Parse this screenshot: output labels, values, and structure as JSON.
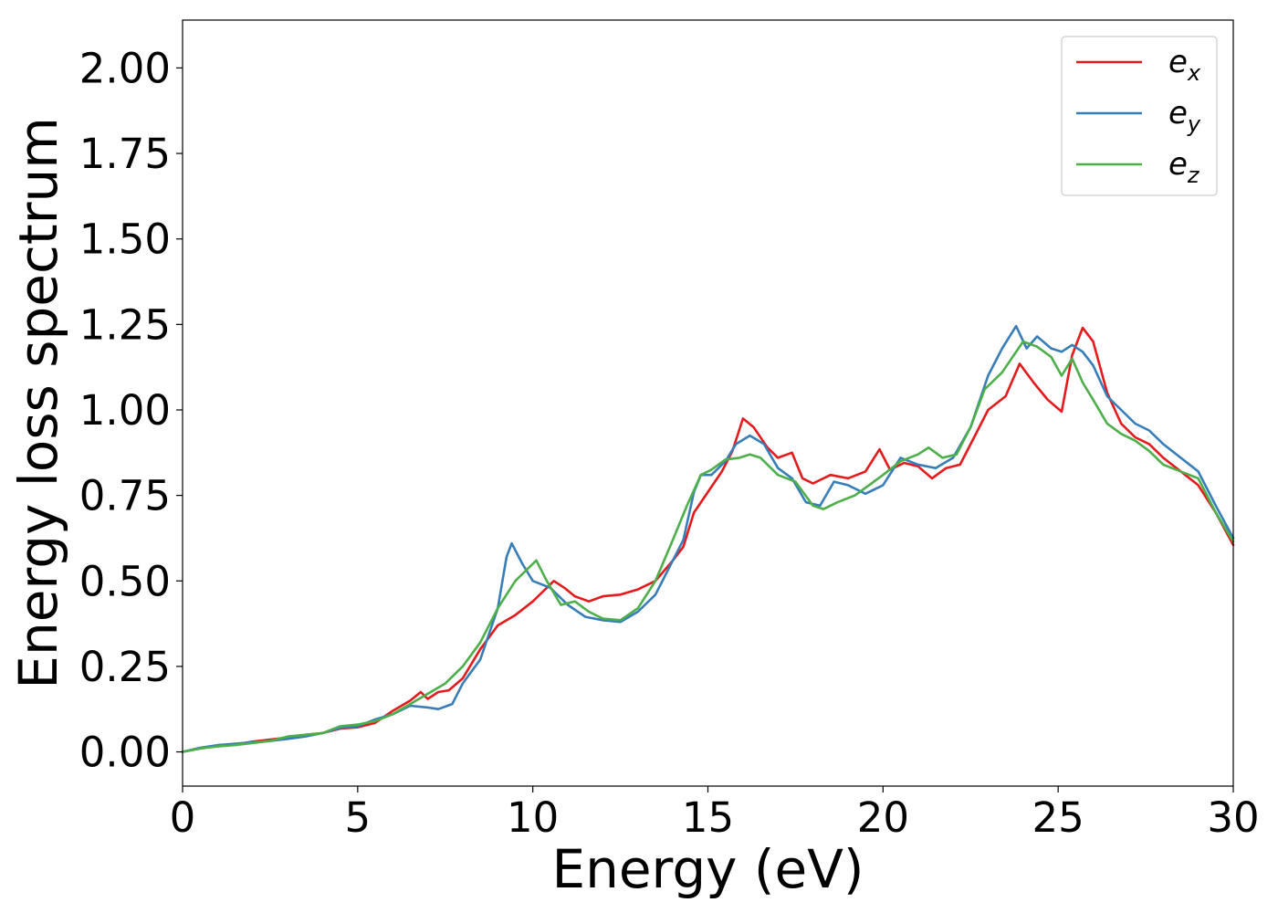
{
  "chart_data": {
    "type": "line",
    "title": "",
    "xlabel": "Energy (eV)",
    "ylabel": "Energy loss spectrum",
    "xlim": [
      0,
      30
    ],
    "ylim": [
      -0.1,
      2.14
    ],
    "x_ticks": [
      0,
      5,
      10,
      15,
      20,
      25,
      30
    ],
    "x_tick_labels": [
      "0",
      "5",
      "10",
      "15",
      "20",
      "25",
      "30"
    ],
    "y_ticks": [
      0.0,
      0.25,
      0.5,
      0.75,
      1.0,
      1.25,
      1.5,
      1.75,
      2.0
    ],
    "y_tick_labels": [
      "0.00",
      "0.25",
      "0.50",
      "0.75",
      "1.00",
      "1.25",
      "1.50",
      "1.75",
      "2.00"
    ],
    "grid": false,
    "legend_position": "top-right",
    "series": [
      {
        "name": "e_x",
        "label_base": "e",
        "label_sub": "x",
        "color": "#e41a1c",
        "points": [
          [
            0,
            0.0
          ],
          [
            0.5,
            0.01
          ],
          [
            1,
            0.018
          ],
          [
            1.5,
            0.022
          ],
          [
            2,
            0.03
          ],
          [
            2.5,
            0.036
          ],
          [
            3,
            0.042
          ],
          [
            3.5,
            0.05
          ],
          [
            4,
            0.055
          ],
          [
            4.5,
            0.068
          ],
          [
            5,
            0.072
          ],
          [
            5.5,
            0.085
          ],
          [
            6,
            0.12
          ],
          [
            6.5,
            0.15
          ],
          [
            6.8,
            0.175
          ],
          [
            7,
            0.155
          ],
          [
            7.3,
            0.175
          ],
          [
            7.6,
            0.18
          ],
          [
            8,
            0.215
          ],
          [
            8.5,
            0.3
          ],
          [
            9,
            0.37
          ],
          [
            9.5,
            0.4
          ],
          [
            10,
            0.44
          ],
          [
            10.3,
            0.47
          ],
          [
            10.6,
            0.5
          ],
          [
            10.9,
            0.48
          ],
          [
            11.2,
            0.455
          ],
          [
            11.6,
            0.44
          ],
          [
            12,
            0.455
          ],
          [
            12.5,
            0.46
          ],
          [
            13,
            0.475
          ],
          [
            13.5,
            0.5
          ],
          [
            14,
            0.56
          ],
          [
            14.3,
            0.6
          ],
          [
            14.6,
            0.7
          ],
          [
            15,
            0.76
          ],
          [
            15.4,
            0.82
          ],
          [
            15.7,
            0.88
          ],
          [
            16,
            0.975
          ],
          [
            16.3,
            0.95
          ],
          [
            16.7,
            0.89
          ],
          [
            17,
            0.86
          ],
          [
            17.4,
            0.875
          ],
          [
            17.7,
            0.8
          ],
          [
            18,
            0.785
          ],
          [
            18.5,
            0.81
          ],
          [
            19,
            0.8
          ],
          [
            19.5,
            0.82
          ],
          [
            19.9,
            0.885
          ],
          [
            20.2,
            0.825
          ],
          [
            20.6,
            0.845
          ],
          [
            21,
            0.835
          ],
          [
            21.4,
            0.8
          ],
          [
            21.8,
            0.83
          ],
          [
            22.2,
            0.84
          ],
          [
            22.6,
            0.92
          ],
          [
            23,
            1.0
          ],
          [
            23.5,
            1.04
          ],
          [
            23.9,
            1.135
          ],
          [
            24.3,
            1.08
          ],
          [
            24.7,
            1.03
          ],
          [
            25.1,
            0.995
          ],
          [
            25.4,
            1.16
          ],
          [
            25.7,
            1.24
          ],
          [
            26,
            1.2
          ],
          [
            26.4,
            1.05
          ],
          [
            26.8,
            0.96
          ],
          [
            27.2,
            0.92
          ],
          [
            27.6,
            0.9
          ],
          [
            28,
            0.86
          ],
          [
            28.5,
            0.82
          ],
          [
            29,
            0.78
          ],
          [
            29.5,
            0.7
          ],
          [
            30,
            0.605
          ]
        ]
      },
      {
        "name": "e_y",
        "label_base": "e",
        "label_sub": "y",
        "color": "#377eb8",
        "points": [
          [
            0,
            0.0
          ],
          [
            0.5,
            0.012
          ],
          [
            1,
            0.02
          ],
          [
            1.5,
            0.024
          ],
          [
            2,
            0.028
          ],
          [
            2.5,
            0.032
          ],
          [
            3,
            0.038
          ],
          [
            3.5,
            0.045
          ],
          [
            4,
            0.055
          ],
          [
            4.5,
            0.07
          ],
          [
            5,
            0.075
          ],
          [
            5.5,
            0.095
          ],
          [
            6,
            0.11
          ],
          [
            6.5,
            0.135
          ],
          [
            7,
            0.13
          ],
          [
            7.3,
            0.125
          ],
          [
            7.7,
            0.14
          ],
          [
            8,
            0.2
          ],
          [
            8.5,
            0.27
          ],
          [
            9,
            0.42
          ],
          [
            9.25,
            0.57
          ],
          [
            9.4,
            0.61
          ],
          [
            9.7,
            0.55
          ],
          [
            10,
            0.5
          ],
          [
            10.5,
            0.48
          ],
          [
            11,
            0.43
          ],
          [
            11.5,
            0.395
          ],
          [
            12,
            0.385
          ],
          [
            12.5,
            0.38
          ],
          [
            13,
            0.41
          ],
          [
            13.5,
            0.46
          ],
          [
            14,
            0.56
          ],
          [
            14.3,
            0.62
          ],
          [
            14.6,
            0.76
          ],
          [
            14.8,
            0.81
          ],
          [
            15.1,
            0.81
          ],
          [
            15.5,
            0.85
          ],
          [
            15.8,
            0.9
          ],
          [
            16.2,
            0.925
          ],
          [
            16.6,
            0.9
          ],
          [
            17,
            0.83
          ],
          [
            17.4,
            0.8
          ],
          [
            17.8,
            0.73
          ],
          [
            18.2,
            0.72
          ],
          [
            18.6,
            0.79
          ],
          [
            19,
            0.78
          ],
          [
            19.5,
            0.755
          ],
          [
            20,
            0.78
          ],
          [
            20.5,
            0.86
          ],
          [
            21,
            0.84
          ],
          [
            21.5,
            0.83
          ],
          [
            22,
            0.86
          ],
          [
            22.5,
            0.95
          ],
          [
            23,
            1.1
          ],
          [
            23.4,
            1.18
          ],
          [
            23.8,
            1.245
          ],
          [
            24.1,
            1.18
          ],
          [
            24.4,
            1.215
          ],
          [
            24.8,
            1.18
          ],
          [
            25.1,
            1.17
          ],
          [
            25.4,
            1.19
          ],
          [
            25.7,
            1.17
          ],
          [
            26,
            1.13
          ],
          [
            26.4,
            1.04
          ],
          [
            26.8,
            1.0
          ],
          [
            27.2,
            0.96
          ],
          [
            27.6,
            0.94
          ],
          [
            28,
            0.9
          ],
          [
            28.5,
            0.86
          ],
          [
            29,
            0.82
          ],
          [
            29.5,
            0.72
          ],
          [
            30,
            0.625
          ]
        ]
      },
      {
        "name": "e_z",
        "label_base": "e",
        "label_sub": "z",
        "color": "#4daf4a",
        "points": [
          [
            0,
            0.0
          ],
          [
            0.5,
            0.01
          ],
          [
            1,
            0.016
          ],
          [
            1.5,
            0.02
          ],
          [
            2,
            0.026
          ],
          [
            2.5,
            0.032
          ],
          [
            3,
            0.045
          ],
          [
            3.5,
            0.05
          ],
          [
            4,
            0.055
          ],
          [
            4.5,
            0.075
          ],
          [
            5,
            0.08
          ],
          [
            5.5,
            0.09
          ],
          [
            6,
            0.11
          ],
          [
            6.5,
            0.14
          ],
          [
            7,
            0.17
          ],
          [
            7.5,
            0.2
          ],
          [
            8,
            0.25
          ],
          [
            8.5,
            0.32
          ],
          [
            9,
            0.42
          ],
          [
            9.5,
            0.5
          ],
          [
            9.8,
            0.53
          ],
          [
            10.1,
            0.56
          ],
          [
            10.4,
            0.5
          ],
          [
            10.8,
            0.43
          ],
          [
            11.2,
            0.44
          ],
          [
            11.6,
            0.41
          ],
          [
            12,
            0.39
          ],
          [
            12.5,
            0.385
          ],
          [
            13,
            0.42
          ],
          [
            13.5,
            0.5
          ],
          [
            14,
            0.62
          ],
          [
            14.4,
            0.72
          ],
          [
            14.8,
            0.81
          ],
          [
            15.1,
            0.825
          ],
          [
            15.5,
            0.855
          ],
          [
            15.9,
            0.86
          ],
          [
            16.2,
            0.87
          ],
          [
            16.5,
            0.86
          ],
          [
            17,
            0.81
          ],
          [
            17.5,
            0.79
          ],
          [
            18,
            0.72
          ],
          [
            18.3,
            0.71
          ],
          [
            18.7,
            0.73
          ],
          [
            19.2,
            0.75
          ],
          [
            19.6,
            0.78
          ],
          [
            20,
            0.81
          ],
          [
            20.5,
            0.85
          ],
          [
            21,
            0.87
          ],
          [
            21.3,
            0.89
          ],
          [
            21.7,
            0.86
          ],
          [
            22.1,
            0.87
          ],
          [
            22.5,
            0.95
          ],
          [
            22.9,
            1.06
          ],
          [
            23.4,
            1.11
          ],
          [
            24,
            1.2
          ],
          [
            24.4,
            1.185
          ],
          [
            24.8,
            1.155
          ],
          [
            25.1,
            1.1
          ],
          [
            25.4,
            1.15
          ],
          [
            25.7,
            1.08
          ],
          [
            26,
            1.03
          ],
          [
            26.4,
            0.96
          ],
          [
            26.8,
            0.93
          ],
          [
            27.2,
            0.91
          ],
          [
            27.6,
            0.88
          ],
          [
            28,
            0.84
          ],
          [
            28.5,
            0.82
          ],
          [
            29,
            0.8
          ],
          [
            29.5,
            0.7
          ],
          [
            30,
            0.615
          ]
        ]
      }
    ]
  }
}
